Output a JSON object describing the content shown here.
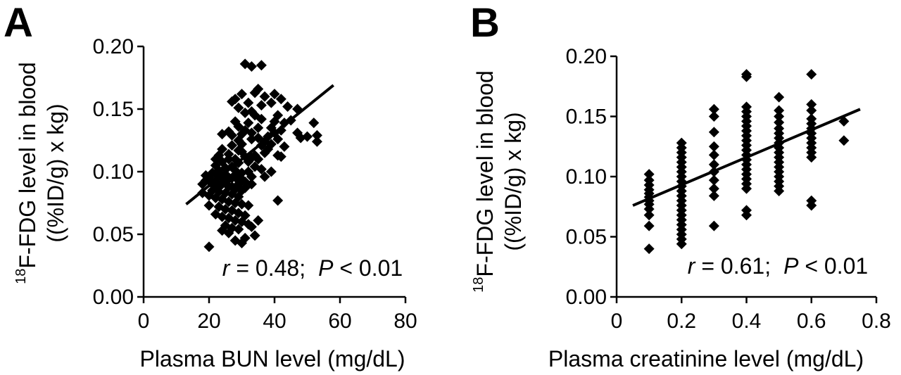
{
  "chart_data": [
    {
      "type": "scatter",
      "panel_label": "A",
      "xlabel": "Plasma BUN level (mg/dL)",
      "ylabel_line1_sup": "18",
      "ylabel_line1": "F-FDG level in blood",
      "ylabel_line2": "((%ID/g) x kg)",
      "xlim": [
        0,
        80
      ],
      "ylim": [
        0,
        0.2
      ],
      "x_ticks": [
        0,
        20,
        40,
        60,
        80
      ],
      "x_tick_labels": [
        "0",
        "20",
        "40",
        "60",
        "80"
      ],
      "y_ticks": [
        0,
        0.05,
        0.1,
        0.15,
        0.2
      ],
      "y_tick_labels": [
        "0.00",
        "0.05",
        "0.10",
        "0.15",
        "0.20"
      ],
      "grid": false,
      "stat": {
        "r_symbol": "r",
        "r_text": " = 0.48;",
        "p_symbol": "P",
        "p_text": " < 0.01"
      },
      "trendline": [
        [
          13,
          0.074
        ],
        [
          58,
          0.169
        ]
      ],
      "points": [
        [
          31,
          0.186
        ],
        [
          33,
          0.184
        ],
        [
          36,
          0.185
        ],
        [
          28,
          0.158
        ],
        [
          30,
          0.162
        ],
        [
          32,
          0.155
        ],
        [
          29,
          0.151
        ],
        [
          34,
          0.163
        ],
        [
          35,
          0.166
        ],
        [
          37,
          0.16
        ],
        [
          40,
          0.162
        ],
        [
          42,
          0.158
        ],
        [
          27,
          0.156
        ],
        [
          33,
          0.148
        ],
        [
          39,
          0.155
        ],
        [
          44,
          0.152
        ],
        [
          47,
          0.15
        ],
        [
          41,
          0.145
        ],
        [
          36,
          0.142
        ],
        [
          31,
          0.147
        ],
        [
          28,
          0.14
        ],
        [
          45,
          0.141
        ],
        [
          52,
          0.139
        ],
        [
          53,
          0.129
        ],
        [
          53,
          0.124
        ],
        [
          50,
          0.128
        ],
        [
          47,
          0.131
        ],
        [
          48,
          0.127
        ],
        [
          35,
          0.135
        ],
        [
          40,
          0.131
        ],
        [
          42,
          0.133
        ],
        [
          38,
          0.128
        ],
        [
          33,
          0.126
        ],
        [
          30,
          0.13
        ],
        [
          26,
          0.132
        ],
        [
          24,
          0.13
        ],
        [
          29,
          0.125
        ],
        [
          27,
          0.121
        ],
        [
          36,
          0.121
        ],
        [
          38,
          0.118
        ],
        [
          41,
          0.113
        ],
        [
          42,
          0.112
        ],
        [
          34,
          0.113
        ],
        [
          33,
          0.111
        ],
        [
          30,
          0.116
        ],
        [
          24,
          0.118
        ],
        [
          23,
          0.113
        ],
        [
          26,
          0.11
        ],
        [
          29,
          0.107
        ],
        [
          32,
          0.108
        ],
        [
          34,
          0.104
        ],
        [
          36,
          0.102
        ],
        [
          39,
          0.1
        ],
        [
          37,
          0.096
        ],
        [
          33,
          0.096
        ],
        [
          30,
          0.099
        ],
        [
          28,
          0.101
        ],
        [
          25,
          0.103
        ],
        [
          22,
          0.105
        ],
        [
          21,
          0.099
        ],
        [
          23,
          0.097
        ],
        [
          25,
          0.098
        ],
        [
          27,
          0.095
        ],
        [
          29,
          0.093
        ],
        [
          31,
          0.092
        ],
        [
          33,
          0.09
        ],
        [
          31,
          0.087
        ],
        [
          20,
          0.095
        ],
        [
          19,
          0.093
        ],
        [
          18,
          0.09
        ],
        [
          22,
          0.092
        ],
        [
          24,
          0.09
        ],
        [
          26,
          0.088
        ],
        [
          28,
          0.086
        ],
        [
          30,
          0.085
        ],
        [
          21,
          0.085
        ],
        [
          23,
          0.084
        ],
        [
          25,
          0.083
        ],
        [
          27,
          0.082
        ],
        [
          29,
          0.08
        ],
        [
          18,
          0.083
        ],
        [
          20,
          0.081
        ],
        [
          22,
          0.079
        ],
        [
          24,
          0.078
        ],
        [
          26,
          0.076
        ],
        [
          28,
          0.075
        ],
        [
          30,
          0.074
        ],
        [
          32,
          0.073
        ],
        [
          20,
          0.073
        ],
        [
          23,
          0.072
        ],
        [
          25,
          0.07
        ],
        [
          27,
          0.069
        ],
        [
          29,
          0.067
        ],
        [
          31,
          0.065
        ],
        [
          22,
          0.066
        ],
        [
          24,
          0.064
        ],
        [
          26,
          0.063
        ],
        [
          28,
          0.061
        ],
        [
          30,
          0.06
        ],
        [
          32,
          0.058
        ],
        [
          25,
          0.057
        ],
        [
          27,
          0.055
        ],
        [
          29,
          0.054
        ],
        [
          24,
          0.053
        ],
        [
          26,
          0.051
        ],
        [
          33,
          0.056
        ],
        [
          34,
          0.049
        ],
        [
          31,
          0.047
        ],
        [
          28,
          0.045
        ],
        [
          30,
          0.043
        ],
        [
          20,
          0.04
        ],
        [
          35,
          0.061
        ],
        [
          41,
          0.077
        ],
        [
          22,
          0.11
        ],
        [
          24,
          0.108
        ],
        [
          26,
          0.114
        ],
        [
          27,
          0.104
        ],
        [
          28,
          0.11
        ],
        [
          29,
          0.117
        ],
        [
          30,
          0.122
        ],
        [
          31,
          0.112
        ],
        [
          23,
          0.101
        ],
        [
          19,
          0.097
        ],
        [
          21,
          0.09
        ],
        [
          23,
          0.088
        ],
        [
          25,
          0.092
        ],
        [
          27,
          0.088
        ],
        [
          29,
          0.09
        ],
        [
          26,
          0.094
        ],
        [
          24,
          0.095
        ],
        [
          22,
          0.098
        ],
        [
          28,
          0.097
        ],
        [
          30,
          0.094
        ],
        [
          32,
          0.1
        ],
        [
          35,
          0.11
        ],
        [
          37,
          0.115
        ],
        [
          39,
          0.122
        ],
        [
          40,
          0.14
        ],
        [
          43,
          0.139
        ],
        [
          36,
          0.153
        ],
        [
          34,
          0.145
        ],
        [
          32,
          0.139
        ],
        [
          29,
          0.136
        ],
        [
          27,
          0.129
        ],
        [
          31,
          0.133
        ],
        [
          33,
          0.131
        ],
        [
          35,
          0.127
        ],
        [
          37,
          0.124
        ],
        [
          39,
          0.135
        ],
        [
          41,
          0.126
        ],
        [
          43,
          0.12
        ]
      ]
    },
    {
      "type": "scatter",
      "panel_label": "B",
      "xlabel": "Plasma creatinine level (mg/dL)",
      "ylabel_line1_sup": "18",
      "ylabel_line1": "F-FDG level in blood",
      "ylabel_line2": "((%ID/g) x kg)",
      "xlim": [
        0,
        0.8
      ],
      "ylim": [
        0,
        0.2
      ],
      "x_ticks": [
        0,
        0.2,
        0.4,
        0.6,
        0.8
      ],
      "x_tick_labels": [
        "0",
        "0.2",
        "0.4",
        "0.6",
        "0.8"
      ],
      "y_ticks": [
        0,
        0.05,
        0.1,
        0.15,
        0.2
      ],
      "y_tick_labels": [
        "0.00",
        "0.05",
        "0.10",
        "0.15",
        "0.20"
      ],
      "grid": false,
      "stat": {
        "r_symbol": "r",
        "r_text": " = 0.61;",
        "p_symbol": "P",
        "p_text": " < 0.01"
      },
      "trendline": [
        [
          0.05,
          0.076
        ],
        [
          0.75,
          0.156
        ]
      ],
      "points": [
        [
          0.1,
          0.102
        ],
        [
          0.1,
          0.097
        ],
        [
          0.1,
          0.093
        ],
        [
          0.1,
          0.089
        ],
        [
          0.1,
          0.086
        ],
        [
          0.1,
          0.083
        ],
        [
          0.1,
          0.08
        ],
        [
          0.1,
          0.077
        ],
        [
          0.1,
          0.073
        ],
        [
          0.1,
          0.068
        ],
        [
          0.1,
          0.059
        ],
        [
          0.1,
          0.04
        ],
        [
          0.2,
          0.128
        ],
        [
          0.2,
          0.124
        ],
        [
          0.2,
          0.12
        ],
        [
          0.2,
          0.116
        ],
        [
          0.2,
          0.112
        ],
        [
          0.2,
          0.108
        ],
        [
          0.2,
          0.104
        ],
        [
          0.2,
          0.1
        ],
        [
          0.2,
          0.096
        ],
        [
          0.2,
          0.092
        ],
        [
          0.2,
          0.088
        ],
        [
          0.2,
          0.084
        ],
        [
          0.2,
          0.08
        ],
        [
          0.2,
          0.076
        ],
        [
          0.2,
          0.072
        ],
        [
          0.2,
          0.068
        ],
        [
          0.2,
          0.064
        ],
        [
          0.2,
          0.06
        ],
        [
          0.2,
          0.056
        ],
        [
          0.2,
          0.052
        ],
        [
          0.2,
          0.048
        ],
        [
          0.2,
          0.044
        ],
        [
          0.3,
          0.156
        ],
        [
          0.3,
          0.15
        ],
        [
          0.3,
          0.137
        ],
        [
          0.3,
          0.125
        ],
        [
          0.3,
          0.118
        ],
        [
          0.3,
          0.11
        ],
        [
          0.3,
          0.104
        ],
        [
          0.3,
          0.097
        ],
        [
          0.3,
          0.09
        ],
        [
          0.3,
          0.084
        ],
        [
          0.3,
          0.059
        ],
        [
          0.4,
          0.185
        ],
        [
          0.4,
          0.183
        ],
        [
          0.4,
          0.158
        ],
        [
          0.4,
          0.154
        ],
        [
          0.4,
          0.15
        ],
        [
          0.4,
          0.146
        ],
        [
          0.4,
          0.142
        ],
        [
          0.4,
          0.138
        ],
        [
          0.4,
          0.134
        ],
        [
          0.4,
          0.13
        ],
        [
          0.4,
          0.126
        ],
        [
          0.4,
          0.122
        ],
        [
          0.4,
          0.118
        ],
        [
          0.4,
          0.114
        ],
        [
          0.4,
          0.11
        ],
        [
          0.4,
          0.106
        ],
        [
          0.4,
          0.102
        ],
        [
          0.4,
          0.098
        ],
        [
          0.4,
          0.094
        ],
        [
          0.4,
          0.09
        ],
        [
          0.4,
          0.072
        ],
        [
          0.4,
          0.068
        ],
        [
          0.5,
          0.166
        ],
        [
          0.5,
          0.155
        ],
        [
          0.5,
          0.15
        ],
        [
          0.5,
          0.145
        ],
        [
          0.5,
          0.14
        ],
        [
          0.5,
          0.136
        ],
        [
          0.5,
          0.132
        ],
        [
          0.5,
          0.128
        ],
        [
          0.5,
          0.124
        ],
        [
          0.5,
          0.12
        ],
        [
          0.5,
          0.116
        ],
        [
          0.5,
          0.112
        ],
        [
          0.5,
          0.108
        ],
        [
          0.5,
          0.104
        ],
        [
          0.5,
          0.1
        ],
        [
          0.5,
          0.096
        ],
        [
          0.5,
          0.092
        ],
        [
          0.5,
          0.088
        ],
        [
          0.6,
          0.185
        ],
        [
          0.6,
          0.16
        ],
        [
          0.6,
          0.155
        ],
        [
          0.6,
          0.148
        ],
        [
          0.6,
          0.144
        ],
        [
          0.6,
          0.14
        ],
        [
          0.6,
          0.136
        ],
        [
          0.6,
          0.132
        ],
        [
          0.6,
          0.128
        ],
        [
          0.6,
          0.124
        ],
        [
          0.6,
          0.12
        ],
        [
          0.6,
          0.116
        ],
        [
          0.6,
          0.08
        ],
        [
          0.6,
          0.076
        ],
        [
          0.7,
          0.146
        ],
        [
          0.7,
          0.13
        ]
      ]
    }
  ]
}
